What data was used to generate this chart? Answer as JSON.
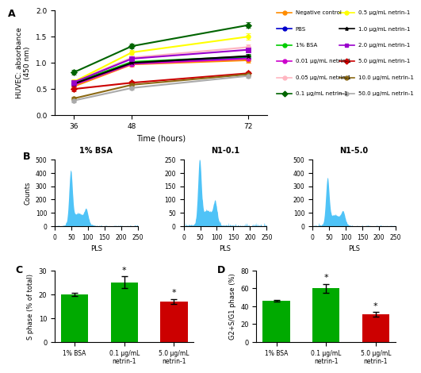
{
  "panel_A": {
    "times": [
      36,
      48,
      72
    ],
    "series": [
      {
        "label": "Negative control",
        "color": "#FF8C00",
        "marker": "o",
        "values": [
          0.55,
          0.97,
          1.05
        ],
        "errors": [
          0.03,
          0.04,
          0.04
        ]
      },
      {
        "label": "PBS",
        "color": "#0000CD",
        "marker": "o",
        "values": [
          0.6,
          1.0,
          1.1
        ],
        "errors": [
          0.03,
          0.04,
          0.04
        ]
      },
      {
        "label": "1% BSA",
        "color": "#00CC00",
        "marker": "o",
        "values": [
          0.62,
          1.02,
          1.12
        ],
        "errors": [
          0.03,
          0.04,
          0.04
        ]
      },
      {
        "label": "0.01 µg/mL netrin-1",
        "color": "#CC00CC",
        "marker": "o",
        "values": [
          0.58,
          0.98,
          1.08
        ],
        "errors": [
          0.03,
          0.04,
          0.04
        ]
      },
      {
        "label": "0.05 µg/mL netrin-1",
        "color": "#FFB6C1",
        "marker": "o",
        "values": [
          0.64,
          1.1,
          1.3
        ],
        "errors": [
          0.03,
          0.05,
          0.05
        ]
      },
      {
        "label": "0.1 µg/mL netrin-1",
        "color": "#006400",
        "marker": "D",
        "values": [
          0.82,
          1.32,
          1.72
        ],
        "errors": [
          0.04,
          0.05,
          0.05
        ]
      },
      {
        "label": "0.5 µg/mL netrin-1",
        "color": "#FFFF00",
        "marker": "o",
        "values": [
          0.64,
          1.2,
          1.5
        ],
        "errors": [
          0.04,
          0.05,
          0.06
        ]
      },
      {
        "label": "1.0 µg/mL netrin-1",
        "color": "#000000",
        "marker": "*",
        "values": [
          0.6,
          1.0,
          1.13
        ],
        "errors": [
          0.03,
          0.04,
          0.04
        ]
      },
      {
        "label": "2.0 µg/mL netrin-1",
        "color": "#9900CC",
        "marker": "s",
        "values": [
          0.63,
          1.08,
          1.25
        ],
        "errors": [
          0.03,
          0.05,
          0.05
        ]
      },
      {
        "label": "5.0 µg/mL netrin-1",
        "color": "#CC0000",
        "marker": "D",
        "values": [
          0.5,
          0.62,
          0.8
        ],
        "errors": [
          0.04,
          0.04,
          0.04
        ]
      },
      {
        "label": "10.0 µg/mL netrin-1",
        "color": "#8B6914",
        "marker": "o",
        "values": [
          0.32,
          0.58,
          0.78
        ],
        "errors": [
          0.03,
          0.04,
          0.04
        ]
      },
      {
        "label": "50.0 µg/mL netrin-1",
        "color": "#AAAAAA",
        "marker": "o",
        "values": [
          0.28,
          0.52,
          0.75
        ],
        "errors": [
          0.03,
          0.04,
          0.04
        ]
      }
    ],
    "ylabel": "HUVEC: absorbance\n(450 nm)",
    "xlabel": "Time (hours)",
    "ylim": [
      0.0,
      2.0
    ],
    "yticks": [
      0.0,
      0.5,
      1.0,
      1.5,
      2.0
    ],
    "xticks": [
      36,
      48,
      72
    ]
  },
  "panel_B": {
    "histograms": [
      {
        "title": "1% BSA",
        "peak1_x": 48,
        "peak1_y": 380,
        "peak2_x": 95,
        "peak2_y": 90,
        "ylim": [
          0,
          500
        ],
        "yticks": [
          0,
          100,
          200,
          300,
          400,
          500
        ]
      },
      {
        "title": "N1-0.1",
        "peak1_x": 48,
        "peak1_y": 230,
        "peak2_x": 95,
        "peak2_y": 70,
        "ylim": [
          0,
          250
        ],
        "yticks": [
          0,
          50,
          100,
          150,
          200,
          250
        ]
      },
      {
        "title": "N1-5.0",
        "peak1_x": 45,
        "peak1_y": 330,
        "peak2_x": 92,
        "peak2_y": 80,
        "ylim": [
          0,
          500
        ],
        "yticks": [
          0,
          100,
          200,
          300,
          400,
          500
        ]
      }
    ],
    "xlabel": "PLS",
    "xlim": [
      0,
      250
    ],
    "xticks": [
      0,
      50,
      100,
      150,
      200,
      250
    ],
    "hist_color": "#4FC3F7"
  },
  "panel_C": {
    "categories": [
      "1% BSA",
      "0.1 µg/mL\nnetrin-1",
      "5.0 µg/mL\nnetrin-1"
    ],
    "values": [
      20.0,
      25.0,
      17.0
    ],
    "errors": [
      0.8,
      2.5,
      1.0
    ],
    "colors": [
      "#00AA00",
      "#00AA00",
      "#CC0000"
    ],
    "ylabel": "S phase (% of total)",
    "ylim": [
      0,
      30
    ],
    "yticks": [
      0,
      10,
      20,
      30
    ],
    "significance": [
      false,
      true,
      true
    ]
  },
  "panel_D": {
    "categories": [
      "1% BSA",
      "0.1 µg/mL\nnetrin-1",
      "5.0 µg/mL\nnetrin-1"
    ],
    "values": [
      46.0,
      60.0,
      31.0
    ],
    "errors": [
      1.0,
      5.0,
      2.5
    ],
    "colors": [
      "#00AA00",
      "#00AA00",
      "#CC0000"
    ],
    "ylabel": "G2+S/G1 phase (%)",
    "ylim": [
      0,
      80
    ],
    "yticks": [
      0,
      20,
      40,
      60,
      80
    ],
    "significance": [
      false,
      true,
      true
    ]
  }
}
